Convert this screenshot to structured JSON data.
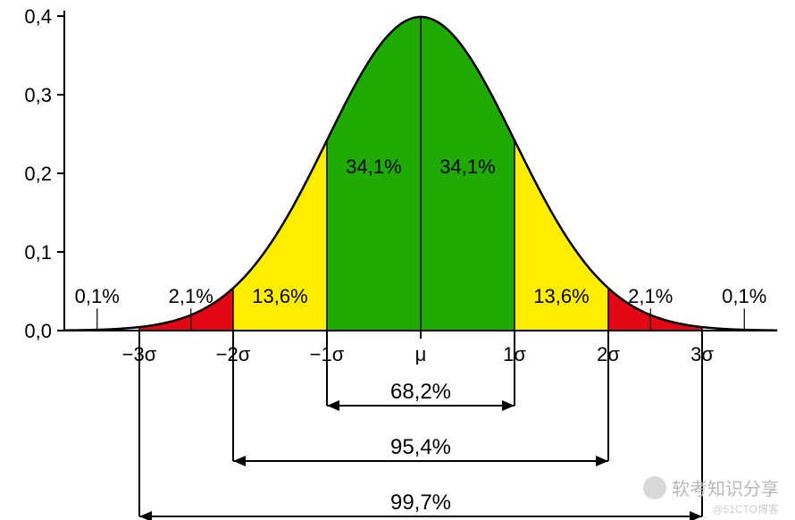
{
  "chart": {
    "type": "area",
    "background_color": "#ffffff",
    "curve_color": "#000000",
    "curve_width": 2.5,
    "axis_color": "#000000",
    "yaxis": {
      "ylim": [
        0.0,
        0.4
      ],
      "ticks": [
        0.0,
        0.1,
        0.2,
        0.3,
        0.4
      ],
      "tick_labels": [
        "0,0",
        "0,1",
        "0,2",
        "0,3",
        "0,4"
      ],
      "label_fontsize": 22
    },
    "xaxis": {
      "xlim": [
        -3.8,
        3.8
      ],
      "tick_positions": [
        -3,
        -2,
        -1,
        0,
        1,
        2,
        3
      ],
      "tick_labels": [
        "−3σ",
        "−2σ",
        "−1σ",
        "μ",
        "1σ",
        "2σ",
        "3σ"
      ],
      "label_fontsize": 22
    },
    "regions": [
      {
        "from": -3.8,
        "to": -3,
        "color": "#ffffff",
        "label": "",
        "label_fontsize": 22
      },
      {
        "from": -3,
        "to": -2,
        "color": "#e30613",
        "label": "",
        "label_fontsize": 22
      },
      {
        "from": -2,
        "to": -1,
        "color": "#ffed00",
        "label": "13,6%",
        "label_fontsize": 22
      },
      {
        "from": -1,
        "to": 0,
        "color": "#1faa00",
        "label": "34,1%",
        "label_fontsize": 22
      },
      {
        "from": 0,
        "to": 1,
        "color": "#1faa00",
        "label": "34,1%",
        "label_fontsize": 22
      },
      {
        "from": 1,
        "to": 2,
        "color": "#ffed00",
        "label": "13,6%",
        "label_fontsize": 22
      },
      {
        "from": 2,
        "to": 3,
        "color": "#e30613",
        "label": "",
        "label_fontsize": 22
      },
      {
        "from": 3,
        "to": 3.8,
        "color": "#ffffff",
        "label": "",
        "label_fontsize": 22
      }
    ],
    "outer_labels": [
      {
        "x": -3.45,
        "text": "0,1%"
      },
      {
        "x": -2.45,
        "text": "2,1%"
      },
      {
        "x": 2.45,
        "text": "2,1%"
      },
      {
        "x": 3.45,
        "text": "0,1%"
      }
    ],
    "ranges": [
      {
        "from": -1,
        "to": 1,
        "label": "68,2%"
      },
      {
        "from": -2,
        "to": 2,
        "label": "95,4%"
      },
      {
        "from": -3,
        "to": 3,
        "label": "99,7%"
      }
    ],
    "range_label_fontsize": 24,
    "watermark": {
      "text": "软考知识分享",
      "sub": "@51CTO博客"
    }
  }
}
